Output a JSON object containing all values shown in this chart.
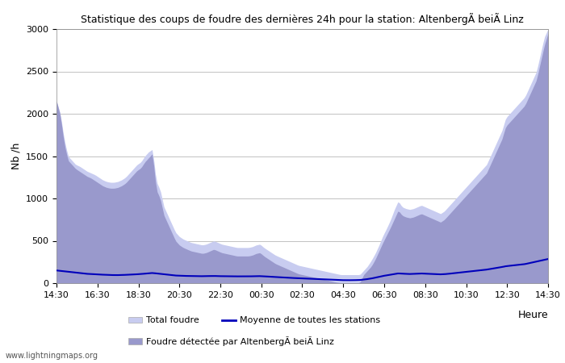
{
  "title": "Statistique des coups de foudre des dernières 24h pour la station: AltenbergÃ beiÃ Linz",
  "ylabel": "Nb /h",
  "xlabel": "Heure",
  "watermark": "www.lightningmaps.org",
  "ylim": [
    0,
    3000
  ],
  "yticks": [
    0,
    500,
    1000,
    1500,
    2000,
    2500,
    3000
  ],
  "xtick_labels": [
    "14:30",
    "16:30",
    "18:30",
    "20:30",
    "22:30",
    "00:30",
    "02:30",
    "04:30",
    "06:30",
    "08:30",
    "10:30",
    "12:30",
    "14:30"
  ],
  "color_total": "#c8ccf0",
  "color_local": "#9999cc",
  "color_mean": "#0000bb",
  "legend_total": "Total foudre",
  "legend_local": "Foudre détectée par AltenbergÃ beiÃ Linz",
  "legend_mean": "Moyenne de toutes les stations",
  "total_foudre": [
    2150,
    2000,
    1700,
    1500,
    1450,
    1400,
    1380,
    1350,
    1320,
    1300,
    1280,
    1250,
    1220,
    1200,
    1190,
    1190,
    1200,
    1220,
    1250,
    1300,
    1350,
    1400,
    1430,
    1500,
    1550,
    1580,
    1200,
    1100,
    900,
    800,
    700,
    600,
    550,
    520,
    500,
    480,
    470,
    460,
    450,
    460,
    480,
    500,
    480,
    460,
    450,
    440,
    430,
    420,
    420,
    420,
    420,
    430,
    450,
    460,
    420,
    390,
    360,
    330,
    310,
    290,
    270,
    250,
    230,
    210,
    200,
    190,
    180,
    170,
    160,
    150,
    140,
    130,
    120,
    110,
    100,
    100,
    100,
    100,
    100,
    100,
    150,
    200,
    270,
    350,
    450,
    560,
    650,
    750,
    870,
    970,
    900,
    880,
    870,
    880,
    900,
    920,
    900,
    880,
    860,
    840,
    820,
    850,
    900,
    950,
    1000,
    1050,
    1100,
    1150,
    1200,
    1250,
    1300,
    1350,
    1400,
    1500,
    1600,
    1700,
    1800,
    1950,
    2000,
    2050,
    2100,
    2150,
    2200,
    2300,
    2400,
    2500,
    2700,
    2900,
    3000
  ],
  "local_foudre": [
    2150,
    1980,
    1650,
    1450,
    1400,
    1350,
    1320,
    1290,
    1260,
    1240,
    1210,
    1180,
    1150,
    1130,
    1120,
    1120,
    1130,
    1150,
    1180,
    1230,
    1280,
    1330,
    1360,
    1430,
    1480,
    1530,
    1100,
    1000,
    800,
    700,
    600,
    500,
    450,
    420,
    400,
    380,
    370,
    360,
    350,
    360,
    380,
    400,
    380,
    360,
    350,
    340,
    330,
    320,
    320,
    320,
    320,
    330,
    350,
    360,
    320,
    290,
    260,
    230,
    210,
    190,
    170,
    150,
    130,
    110,
    100,
    90,
    80,
    70,
    60,
    50,
    40,
    30,
    20,
    10,
    5,
    5,
    5,
    5,
    5,
    5,
    100,
    150,
    200,
    280,
    380,
    480,
    570,
    660,
    760,
    860,
    800,
    780,
    770,
    780,
    800,
    820,
    800,
    780,
    760,
    740,
    720,
    750,
    800,
    850,
    900,
    950,
    1000,
    1050,
    1100,
    1150,
    1200,
    1250,
    1300,
    1400,
    1500,
    1600,
    1700,
    1850,
    1900,
    1950,
    2000,
    2050,
    2100,
    2200,
    2300,
    2400,
    2600,
    2800,
    2950
  ],
  "mean_line": [
    150,
    145,
    140,
    135,
    130,
    125,
    120,
    115,
    110,
    108,
    105,
    102,
    100,
    98,
    96,
    95,
    95,
    96,
    98,
    100,
    102,
    105,
    108,
    112,
    116,
    120,
    115,
    110,
    105,
    100,
    95,
    90,
    88,
    86,
    85,
    84,
    83,
    82,
    82,
    83,
    84,
    85,
    83,
    82,
    82,
    81,
    80,
    80,
    80,
    80,
    80,
    81,
    82,
    83,
    80,
    78,
    75,
    72,
    70,
    68,
    65,
    62,
    60,
    58,
    56,
    54,
    52,
    50,
    48,
    46,
    44,
    42,
    40,
    38,
    36,
    35,
    35,
    35,
    36,
    37,
    42,
    48,
    55,
    65,
    75,
    85,
    92,
    100,
    108,
    115,
    112,
    110,
    108,
    110,
    112,
    114,
    112,
    110,
    108,
    106,
    104,
    106,
    110,
    115,
    120,
    125,
    130,
    135,
    140,
    145,
    150,
    155,
    160,
    168,
    175,
    183,
    190,
    200,
    205,
    210,
    215,
    220,
    225,
    235,
    245,
    255,
    265,
    275,
    285
  ]
}
